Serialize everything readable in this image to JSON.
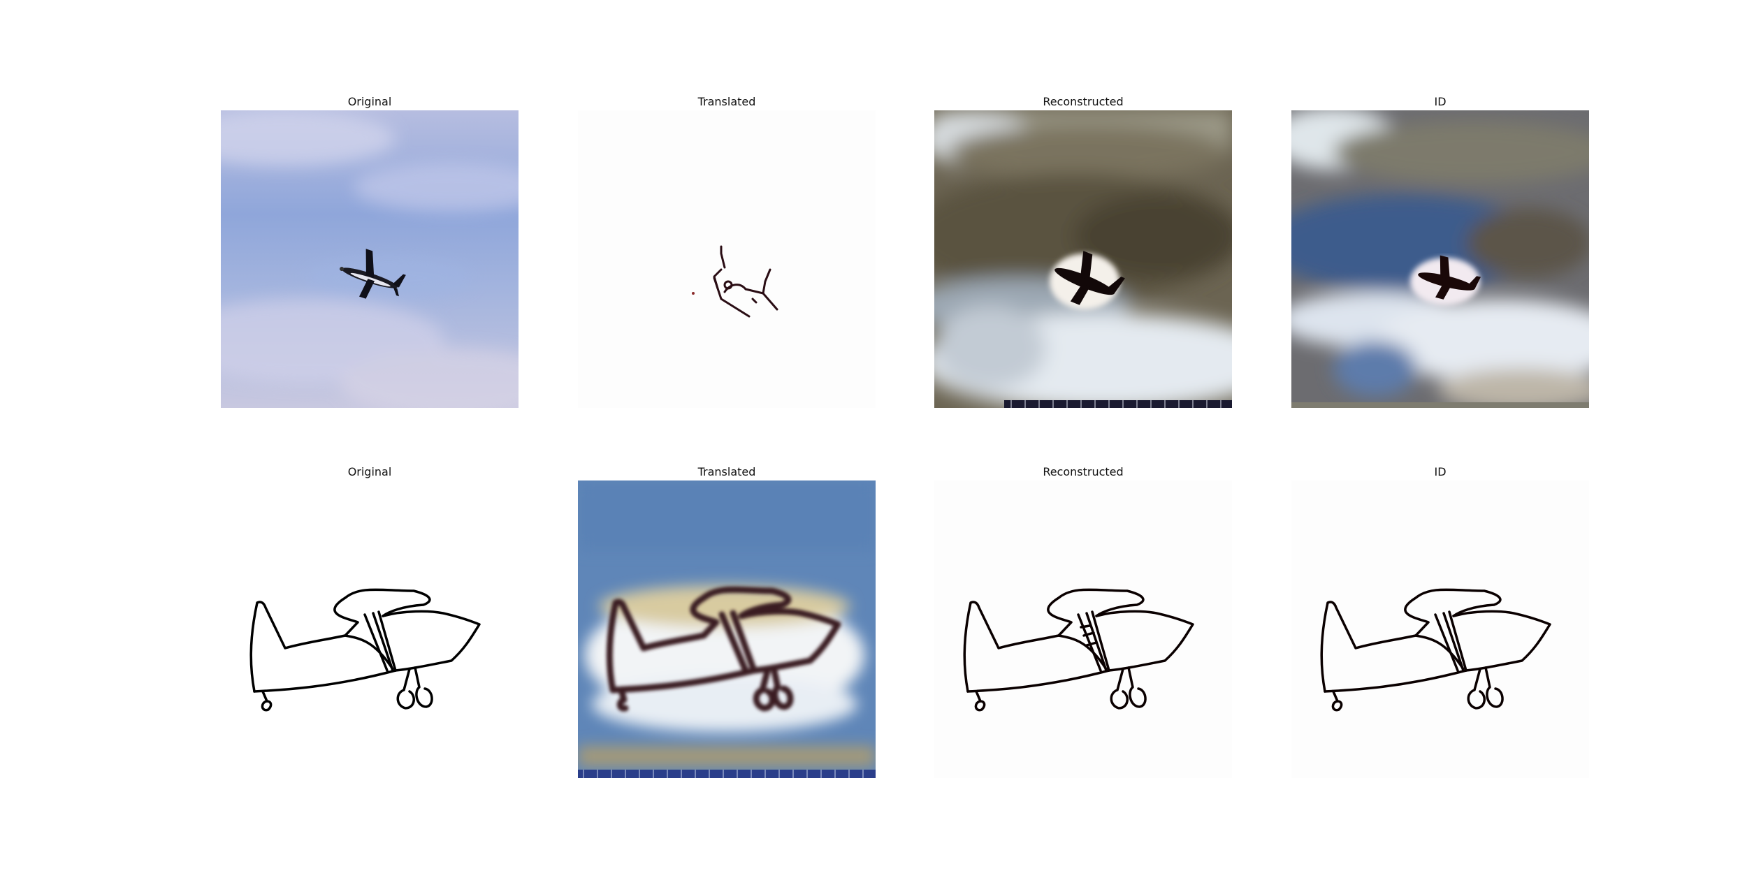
{
  "figure": {
    "rows": [
      {
        "panels": [
          {
            "title": "Original"
          },
          {
            "title": "Translated"
          },
          {
            "title": "Reconstructed"
          },
          {
            "title": "ID"
          }
        ]
      },
      {
        "panels": [
          {
            "title": "Original"
          },
          {
            "title": "Translated"
          },
          {
            "title": "Reconstructed"
          },
          {
            "title": "ID"
          }
        ]
      }
    ]
  }
}
